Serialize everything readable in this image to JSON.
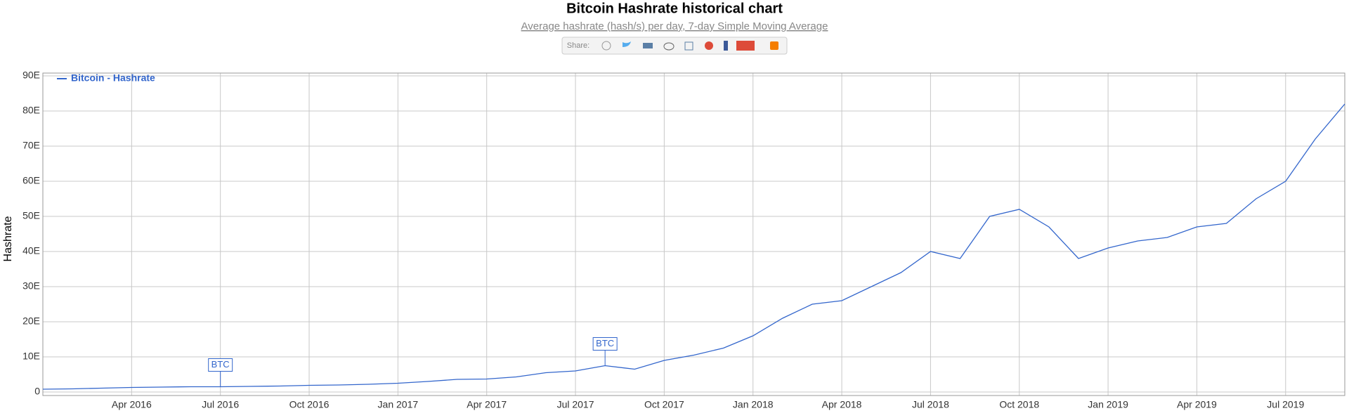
{
  "chart_data": {
    "type": "line",
    "title": "Bitcoin Hashrate historical chart",
    "subtitle": "Average hashrate (hash/s) per day, 7-day Simple Moving Average",
    "y_label": "Hashrate",
    "x": [
      "2016-01",
      "2016-02",
      "2016-03",
      "2016-04",
      "2016-05",
      "2016-06",
      "2016-07",
      "2016-08",
      "2016-09",
      "2016-10",
      "2016-11",
      "2016-12",
      "2017-01",
      "2017-02",
      "2017-03",
      "2017-04",
      "2017-05",
      "2017-06",
      "2017-07",
      "2017-08",
      "2017-09",
      "2017-10",
      "2017-11",
      "2017-12",
      "2018-01",
      "2018-02",
      "2018-03",
      "2018-04",
      "2018-05",
      "2018-06",
      "2018-07",
      "2018-08",
      "2018-09",
      "2018-10",
      "2018-11",
      "2018-12",
      "2019-01",
      "2019-02",
      "2019-03",
      "2019-04",
      "2019-05",
      "2019-06",
      "2019-07",
      "2019-08",
      "2019-09"
    ],
    "series": [
      {
        "name": "Bitcoin - Hashrate",
        "color": "#3366cc",
        "values": [
          0.8,
          0.9,
          1.1,
          1.3,
          1.4,
          1.5,
          1.5,
          1.6,
          1.7,
          1.9,
          2.0,
          2.2,
          2.5,
          3.0,
          3.6,
          3.7,
          4.3,
          5.5,
          6.0,
          7.5,
          6.5,
          9.0,
          10.5,
          12.5,
          16,
          21,
          25,
          26,
          30,
          34,
          40,
          38,
          50,
          52,
          47,
          38,
          41,
          43,
          44,
          47,
          48,
          55,
          60,
          72,
          82
        ]
      }
    ],
    "xlim": [
      "2016-01",
      "2019-09"
    ],
    "xticks": [
      {
        "value": "2016-04",
        "label": "Apr 2016"
      },
      {
        "value": "2016-07",
        "label": "Jul 2016"
      },
      {
        "value": "2016-10",
        "label": "Oct 2016"
      },
      {
        "value": "2017-01",
        "label": "Jan 2017"
      },
      {
        "value": "2017-04",
        "label": "Apr 2017"
      },
      {
        "value": "2017-07",
        "label": "Jul 2017"
      },
      {
        "value": "2017-10",
        "label": "Oct 2017"
      },
      {
        "value": "2018-01",
        "label": "Jan 2018"
      },
      {
        "value": "2018-04",
        "label": "Apr 2018"
      },
      {
        "value": "2018-07",
        "label": "Jul 2018"
      },
      {
        "value": "2018-10",
        "label": "Oct 2018"
      },
      {
        "value": "2019-01",
        "label": "Jan 2019"
      },
      {
        "value": "2019-04",
        "label": "Apr 2019"
      },
      {
        "value": "2019-07",
        "label": "Jul 2019"
      }
    ],
    "ylim": [
      -1,
      90
    ],
    "yticks": [
      0,
      {
        "value": 10,
        "label": "10E"
      },
      {
        "value": 20,
        "label": "20E"
      },
      {
        "value": 30,
        "label": "30E"
      },
      {
        "value": 40,
        "label": "40E"
      },
      {
        "value": 50,
        "label": "50E"
      },
      {
        "value": 60,
        "label": "60E"
      },
      {
        "value": 70,
        "label": "70E"
      },
      {
        "value": 80,
        "label": "80E"
      },
      {
        "value": 90,
        "label": "90E"
      }
    ],
    "grid": true,
    "legend": "top-left",
    "annotations": [
      {
        "x": "2016-07",
        "text": "BTC"
      },
      {
        "x": "2017-08",
        "text": "BTC"
      }
    ]
  },
  "share": {
    "label": "Share:"
  }
}
